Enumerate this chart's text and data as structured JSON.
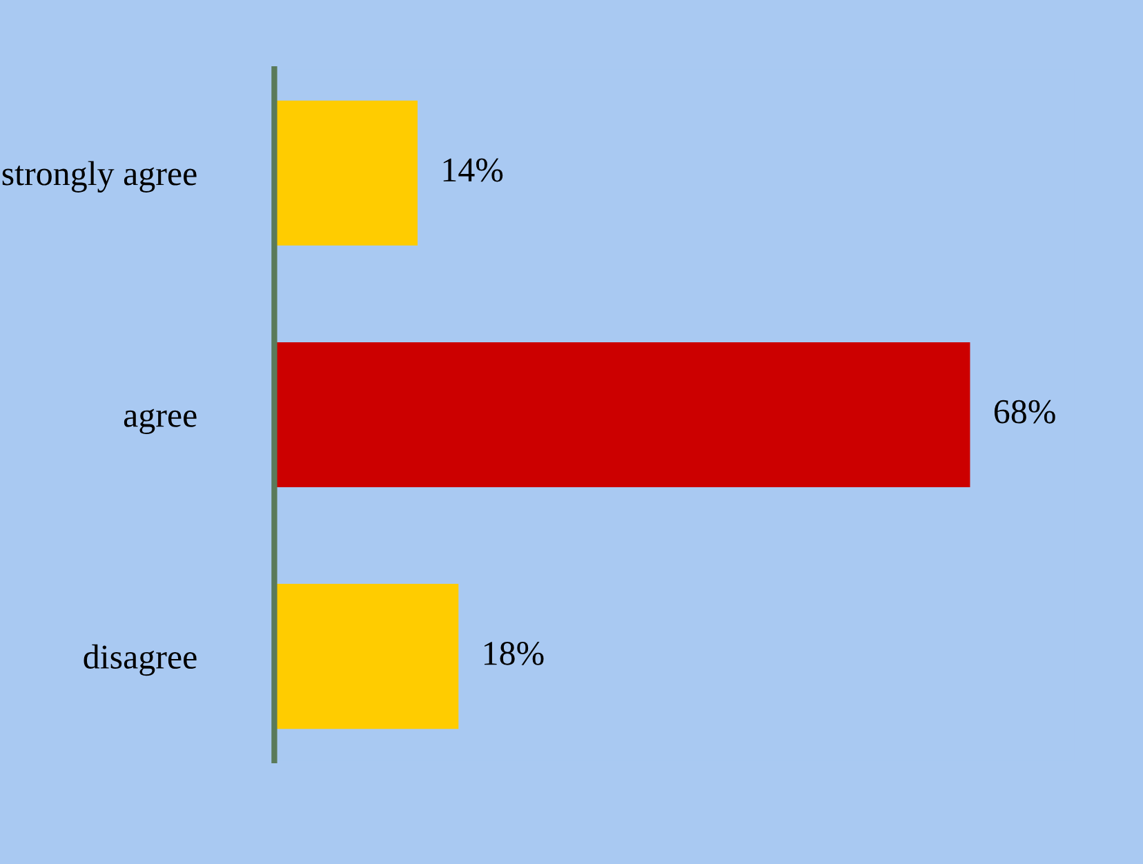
{
  "chart_data": {
    "type": "bar",
    "orientation": "horizontal",
    "categories": [
      "strongly agree",
      "agree",
      "disagree"
    ],
    "values": [
      14,
      68,
      18
    ],
    "value_labels": [
      "14%",
      "68%",
      "18%"
    ],
    "colors": [
      "#ffcc00",
      "#cc0000",
      "#ffcc00"
    ],
    "grid": false,
    "tick_labels": "y"
  }
}
